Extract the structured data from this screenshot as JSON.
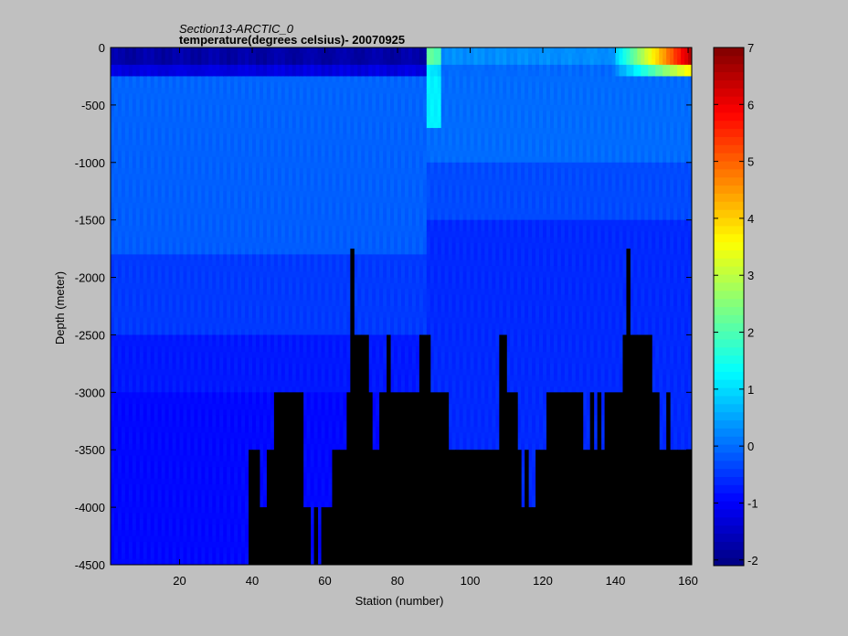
{
  "chart_data": {
    "type": "heatmap",
    "title": "Section13-ARCTIC_0",
    "subtitle": "temperature(degrees  celsius)- 20070925",
    "xlabel": "Station (number)",
    "ylabel": "Depth (meter)",
    "xlim": [
      1,
      161
    ],
    "ylim": [
      -4500,
      0
    ],
    "x_ticks": [
      20,
      40,
      60,
      80,
      100,
      120,
      140,
      160
    ],
    "y_ticks": [
      0,
      -500,
      -1000,
      -1500,
      -2000,
      -2500,
      -3000,
      -3500,
      -4000,
      -4500
    ],
    "colorbar": {
      "min": -2.1,
      "max": 7,
      "ticks": [
        -2,
        -1,
        0,
        1,
        2,
        3,
        4,
        5,
        6,
        7
      ],
      "colormap": "jet"
    },
    "bathymetry_bottom_depth": {
      "stations": [
        1,
        39,
        40,
        42,
        44,
        46,
        54,
        56,
        57,
        58,
        59,
        62,
        64,
        66,
        67,
        68,
        70,
        72,
        73,
        75,
        77,
        78,
        86,
        89,
        94,
        96,
        108,
        110,
        113,
        114,
        115,
        116,
        117,
        118,
        119,
        121,
        129,
        131,
        133,
        134,
        135,
        136,
        137,
        142,
        143,
        144,
        146,
        150,
        152,
        154,
        155,
        157,
        161
      ],
      "depths_m": [
        -4500,
        -3500,
        -3500,
        -4000,
        -3500,
        -3000,
        -4000,
        -4500,
        -4000,
        -4500,
        -4000,
        -3500,
        -3500,
        -3000,
        -1750,
        -2500,
        -2500,
        -3000,
        -3500,
        -3000,
        -2500,
        -3000,
        -2500,
        -3000,
        -3500,
        -3500,
        -2500,
        -3000,
        -3500,
        -4000,
        -3500,
        -4000,
        -4000,
        -3500,
        -3500,
        -3000,
        -3000,
        -3500,
        -3000,
        -3500,
        -3000,
        -3500,
        -3000,
        -2500,
        -1750,
        -2500,
        -2500,
        -3000,
        -3500,
        -3000,
        -3500,
        -3500,
        -3500
      ]
    }
  }
}
